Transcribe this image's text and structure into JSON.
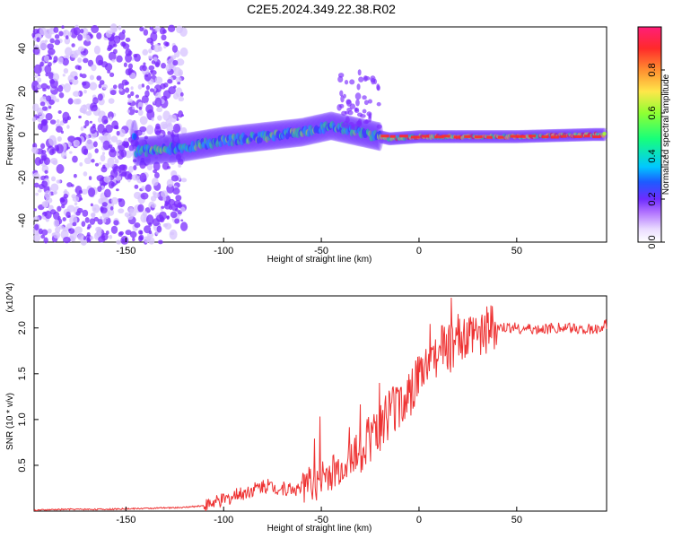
{
  "title": "C2E5.2024.349.22.38.R02",
  "colors": {
    "signal": "#ee3333",
    "spectral_low": "#7b2cff",
    "spectral_high": "#ff2a2a"
  },
  "chart_data": [
    {
      "type": "heatmap",
      "title": "C2E5.2024.349.22.38.R02",
      "xlabel": "Height of straight line (km)",
      "ylabel": "Frequency (Hz)",
      "xlim": [
        -197,
        96
      ],
      "ylim": [
        -50,
        50
      ],
      "x_ticks": [
        -150,
        -100,
        -50,
        0,
        50
      ],
      "y_ticks": [
        -40,
        -20,
        0,
        20,
        40
      ],
      "colorbar": {
        "label": "Normalized spectral amplitude",
        "range": [
          0,
          1
        ],
        "ticks": [
          "0.0",
          "0.2",
          "0.4",
          "0.6",
          "0.8"
        ]
      },
      "grid": false,
      "description_points": [
        {
          "x": -145,
          "y": -8
        },
        {
          "x": -120,
          "y": -6
        },
        {
          "x": -100,
          "y": -3
        },
        {
          "x": -80,
          "y": -1
        },
        {
          "x": -60,
          "y": 1
        },
        {
          "x": -45,
          "y": 4
        },
        {
          "x": -30,
          "y": 1
        },
        {
          "x": -15,
          "y": -2
        },
        {
          "x": 0,
          "y": -1
        },
        {
          "x": 20,
          "y": -1
        },
        {
          "x": 50,
          "y": -1
        },
        {
          "x": 90,
          "y": 0
        }
      ]
    },
    {
      "type": "line",
      "xlabel": "Height of straight line (km)",
      "ylabel": "SNR (10 * v/v)",
      "y_multiplier": "(x10^4)",
      "xlim": [
        -197,
        96
      ],
      "ylim": [
        0,
        2.35
      ],
      "x_ticks": [
        -150,
        -100,
        -50,
        0,
        50
      ],
      "y_ticks": [
        0.5,
        1.0,
        1.5,
        2.0
      ],
      "series": [
        {
          "x": [
            -197,
            -180,
            -160,
            -140,
            -120,
            -110,
            -100,
            -90,
            -80,
            -70,
            -60,
            -50,
            -40,
            -30,
            -20,
            -10,
            0,
            10,
            20,
            30,
            40,
            50,
            60,
            70,
            80,
            90,
            96
          ],
          "values": [
            0.01,
            0.02,
            0.02,
            0.03,
            0.04,
            0.06,
            0.12,
            0.2,
            0.28,
            0.25,
            0.24,
            0.35,
            0.45,
            0.7,
            0.95,
            1.15,
            1.45,
            1.75,
            1.85,
            1.95,
            2.0,
            2.0,
            1.98,
            2.0,
            2.0,
            1.98,
            2.05
          ]
        }
      ]
    }
  ]
}
